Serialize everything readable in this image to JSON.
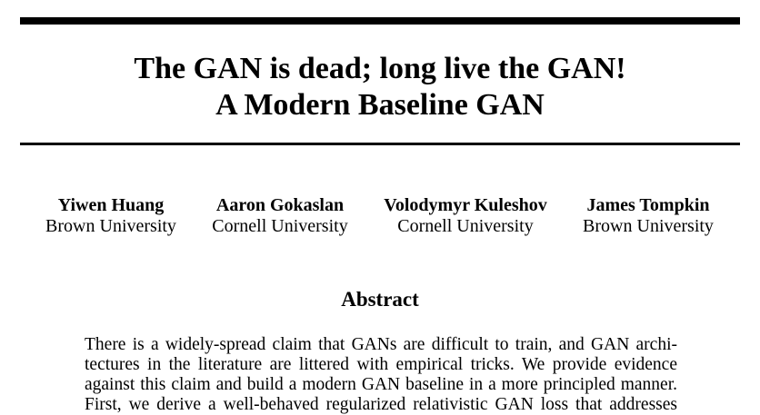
{
  "paper": {
    "title_line1": "The GAN is dead; long live the GAN!",
    "title_line2": "A Modern Baseline GAN",
    "authors": [
      {
        "name": "Yiwen Huang",
        "affiliation": "Brown University"
      },
      {
        "name": "Aaron Gokaslan",
        "affiliation": "Cornell University"
      },
      {
        "name": "Volodymyr Kuleshov",
        "affiliation": "Cornell University"
      },
      {
        "name": "James Tompkin",
        "affiliation": "Brown University"
      }
    ],
    "abstract_heading": "Abstract",
    "abstract_lines": [
      "There is a widely-spread claim that GANs are difficult to train, and GAN archi-",
      "tectures in the literature are littered with empirical tricks. We provide evidence",
      "against this claim and build a modern GAN baseline in a more principled manner.",
      "First, we derive a well-behaved regularized relativistic GAN loss that addresses"
    ]
  }
}
